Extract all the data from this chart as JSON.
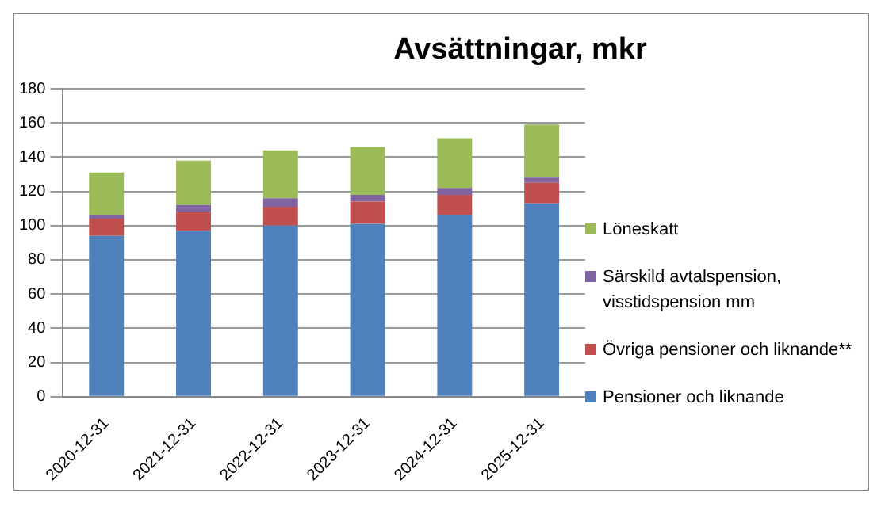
{
  "chart_data": {
    "type": "bar",
    "title": "Avsättningar, mkr",
    "stacked": true,
    "categories": [
      "2020-12-31",
      "2021-12-31",
      "2022-12-31",
      "2023-12-31",
      "2024-12-31",
      "2025-12-31"
    ],
    "series": [
      {
        "name": "Pensioner och liknande",
        "color": "#4f81bd",
        "values": [
          94,
          97,
          100,
          101,
          106,
          113
        ]
      },
      {
        "name": "Övriga pensioner och liknande**",
        "color": "#c0504d",
        "values": [
          10,
          11,
          11,
          13,
          12,
          12
        ]
      },
      {
        "name": "Särskild avtalspension, visstidspension mm",
        "color": "#8064a2",
        "values": [
          2,
          4,
          5,
          4,
          4,
          3
        ]
      },
      {
        "name": "Löneskatt",
        "color": "#9bbb59",
        "values": [
          25,
          26,
          28,
          28,
          29,
          31
        ]
      }
    ],
    "ylim": [
      0,
      180
    ],
    "yticks": [
      0,
      20,
      40,
      60,
      80,
      100,
      120,
      140,
      160,
      180
    ],
    "grid": "y",
    "legend": "right"
  }
}
